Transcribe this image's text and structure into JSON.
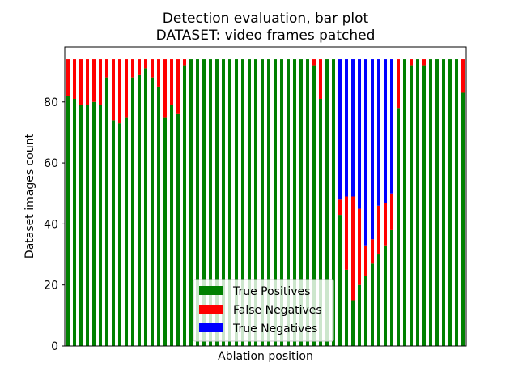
{
  "chart_data": {
    "type": "bar",
    "stacked": true,
    "title": "Detection evaluation, bar plot",
    "subtitle": "DATASET: video frames patched",
    "xlabel": "Ablation position",
    "ylabel": "Dataset images count",
    "ylim": [
      0,
      98
    ],
    "yticks": [
      0,
      20,
      40,
      60,
      80
    ],
    "xticks_visible": false,
    "grid": false,
    "legend_position": "lower-center",
    "colors": {
      "True Positives": "#008000",
      "False Negatives": "#ff0000",
      "True Negatives": "#0000ff"
    },
    "series": [
      {
        "name": "True Positives",
        "values": [
          82,
          81,
          79,
          79,
          80,
          79,
          88,
          74,
          73,
          75,
          88,
          89,
          91,
          88,
          85,
          75,
          79,
          76,
          92,
          94,
          94,
          94,
          94,
          94,
          94,
          94,
          94,
          94,
          94,
          94,
          94,
          94,
          94,
          94,
          94,
          94,
          94,
          94,
          92,
          81,
          94,
          94,
          43,
          25,
          15,
          20,
          23,
          27,
          30,
          33,
          38,
          78,
          94,
          92,
          94,
          92,
          94,
          94,
          94,
          94,
          94,
          83
        ]
      },
      {
        "name": "False Negatives",
        "values": [
          12,
          13,
          15,
          15,
          14,
          15,
          6,
          20,
          21,
          19,
          6,
          5,
          3,
          6,
          9,
          19,
          15,
          18,
          2,
          0,
          0,
          0,
          0,
          0,
          0,
          0,
          0,
          0,
          0,
          0,
          0,
          0,
          0,
          0,
          0,
          0,
          0,
          0,
          2,
          13,
          0,
          0,
          5,
          24,
          34,
          25,
          10,
          8,
          16,
          14,
          12,
          16,
          0,
          2,
          0,
          2,
          0,
          0,
          0,
          0,
          0,
          11
        ]
      },
      {
        "name": "True Negatives",
        "values": [
          0,
          0,
          0,
          0,
          0,
          0,
          0,
          0,
          0,
          0,
          0,
          0,
          0,
          0,
          0,
          0,
          0,
          0,
          0,
          0,
          0,
          0,
          0,
          0,
          0,
          0,
          0,
          0,
          0,
          0,
          0,
          0,
          0,
          0,
          0,
          0,
          0,
          0,
          0,
          0,
          0,
          0,
          46,
          45,
          45,
          49,
          61,
          59,
          48,
          47,
          44,
          0,
          0,
          0,
          0,
          0,
          0,
          0,
          0,
          0,
          0,
          0
        ]
      }
    ]
  }
}
